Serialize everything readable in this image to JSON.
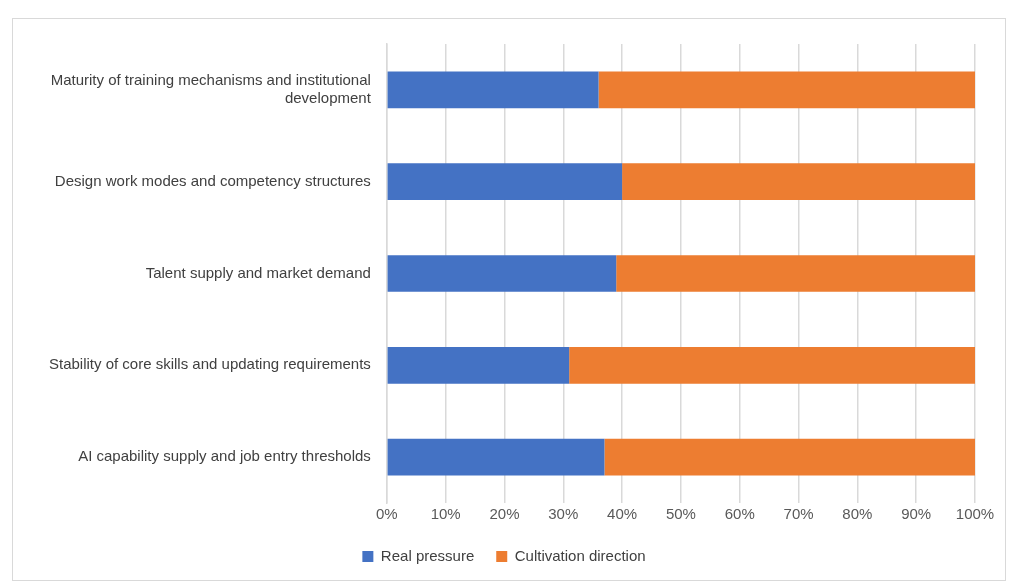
{
  "chart_data": {
    "type": "bar",
    "orientation": "horizontal",
    "stacked": true,
    "categories": [
      "Maturity of training mechanisms and institutional development",
      "Design work modes and competency structures",
      "Talent supply and market demand",
      "Stability of core skills and updating requirements",
      "AI capability supply and job entry thresholds"
    ],
    "series": [
      {
        "name": "Real pressure",
        "color": "#4472c4",
        "values": [
          36,
          40,
          39,
          31,
          37
        ]
      },
      {
        "name": "Cultivation direction",
        "color": "#ed7d31",
        "values": [
          64,
          60,
          61,
          69,
          63
        ]
      }
    ],
    "xlim": [
      0,
      100
    ],
    "xticks": [
      {
        "value": 0,
        "label": "0%"
      },
      {
        "value": 10,
        "label": "10%"
      },
      {
        "value": 20,
        "label": "20%"
      },
      {
        "value": 30,
        "label": "30%"
      },
      {
        "value": 40,
        "label": "40%"
      },
      {
        "value": 50,
        "label": "50%"
      },
      {
        "value": 60,
        "label": "60%"
      },
      {
        "value": 70,
        "label": "70%"
      },
      {
        "value": 80,
        "label": "80%"
      },
      {
        "value": 90,
        "label": "90%"
      },
      {
        "value": 100,
        "label": "100%"
      }
    ],
    "grid": "x",
    "legend": "bottom"
  }
}
